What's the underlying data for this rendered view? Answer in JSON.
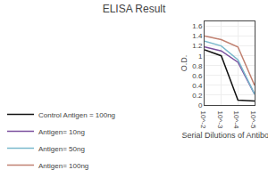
{
  "chart_data": {
    "type": "line",
    "title": "ELISA Result",
    "xlabel": "Serial Dilutions of Antibody",
    "ylabel": "O.D.",
    "x": [
      0.01,
      0.001,
      0.0001,
      1e-05
    ],
    "series": [
      {
        "name": "Control Antigen = 100ng",
        "color": "#111111",
        "values": [
          1.12,
          1.0,
          0.1,
          0.08
        ]
      },
      {
        "name": "Antigen= 10ng",
        "color": "#7B4F9E",
        "values": [
          1.18,
          1.1,
          0.87,
          0.22
        ]
      },
      {
        "name": "Antigen= 50ng",
        "color": "#7ab8cc",
        "values": [
          1.3,
          1.2,
          0.92,
          0.22
        ]
      },
      {
        "name": "Antigen= 100ng",
        "color": "#c08070",
        "values": [
          1.4,
          1.33,
          1.18,
          0.4
        ]
      }
    ],
    "xlim": [
      0.01,
      1e-05
    ],
    "ylim": [
      0,
      1.7
    ],
    "xticks": [
      {
        "value": 0.01,
        "label": "10^-2"
      },
      {
        "value": 0.001,
        "label": "10^-3"
      },
      {
        "value": 0.0001,
        "label": "10^-4"
      },
      {
        "value": 1e-05,
        "label": "10^-5"
      }
    ],
    "yticks": [
      0,
      0.2,
      0.4,
      0.6,
      0.8,
      1,
      1.2,
      1.4,
      1.6
    ],
    "log": "x",
    "grid": true,
    "legend": "bottom"
  }
}
